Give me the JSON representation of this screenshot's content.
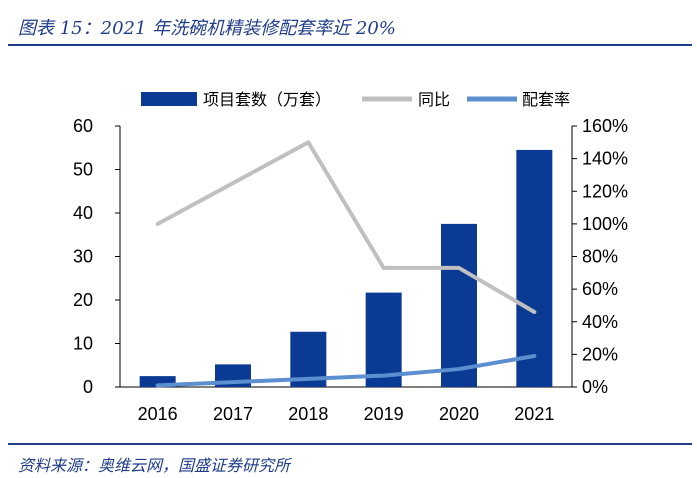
{
  "caption": "图表 15：2021 年洗碗机精装修配套率近 20%",
  "source": "资料来源：奥维云网，国盛证券研究所",
  "colors": {
    "bar": "#0b3a94",
    "yoy": "#c0c0c0",
    "rate": "#5b8fd0",
    "rule": "#1f3d8a"
  },
  "chart_data": {
    "type": "bar",
    "categories": [
      "2016",
      "2017",
      "2018",
      "2019",
      "2020",
      "2021"
    ],
    "series": [
      {
        "name": "项目套数（万套）",
        "type": "bar",
        "axis": "left",
        "values": [
          2.5,
          5.2,
          12.7,
          21.7,
          37.5,
          54.5
        ]
      },
      {
        "name": "同比",
        "type": "line",
        "axis": "right",
        "values": [
          100,
          null,
          150,
          73,
          73,
          46
        ]
      },
      {
        "name": "配套率",
        "type": "line",
        "axis": "right",
        "values": [
          1,
          3,
          5,
          7,
          11,
          19
        ]
      }
    ],
    "y_left": {
      "min": 0,
      "max": 60,
      "step": 10,
      "ticks": [
        "0",
        "10",
        "20",
        "30",
        "40",
        "50",
        "60"
      ]
    },
    "y_right": {
      "min": 0,
      "max": 160,
      "step": 20,
      "ticks": [
        "0%",
        "20%",
        "40%",
        "60%",
        "80%",
        "100%",
        "120%",
        "140%",
        "160%"
      ]
    },
    "legend": "top-right",
    "grid": false
  }
}
